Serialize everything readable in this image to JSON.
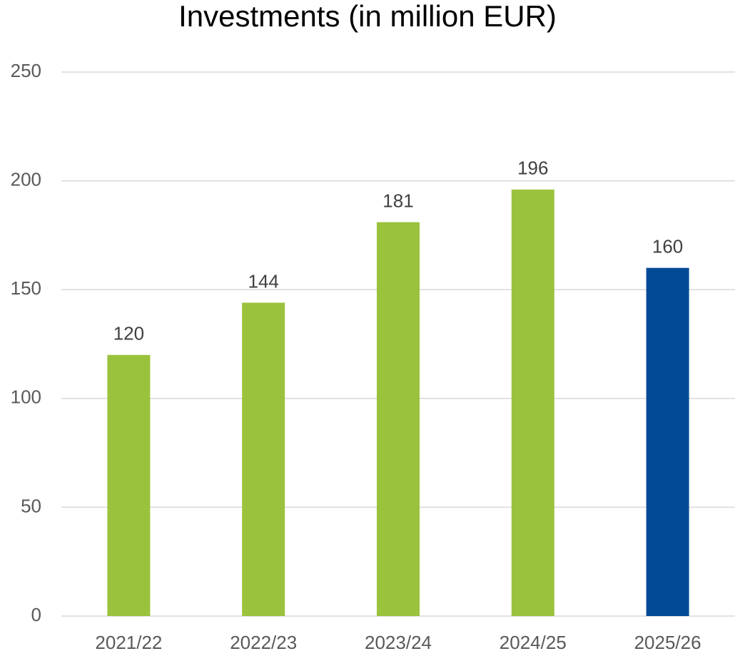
{
  "chart_data": {
    "type": "bar",
    "title": "Investments (in million EUR)",
    "categories": [
      "2021/22",
      "2022/23",
      "2023/24",
      "2024/25",
      "2025/26"
    ],
    "values": [
      120,
      144,
      181,
      196,
      160
    ],
    "colors": [
      "#9bc23c",
      "#9bc23c",
      "#9bc23c",
      "#9bc23c",
      "#004a96"
    ],
    "ylim": [
      0,
      250
    ],
    "yticks": [
      0,
      50,
      100,
      150,
      200,
      250
    ],
    "grid": true,
    "data_labels": true
  }
}
